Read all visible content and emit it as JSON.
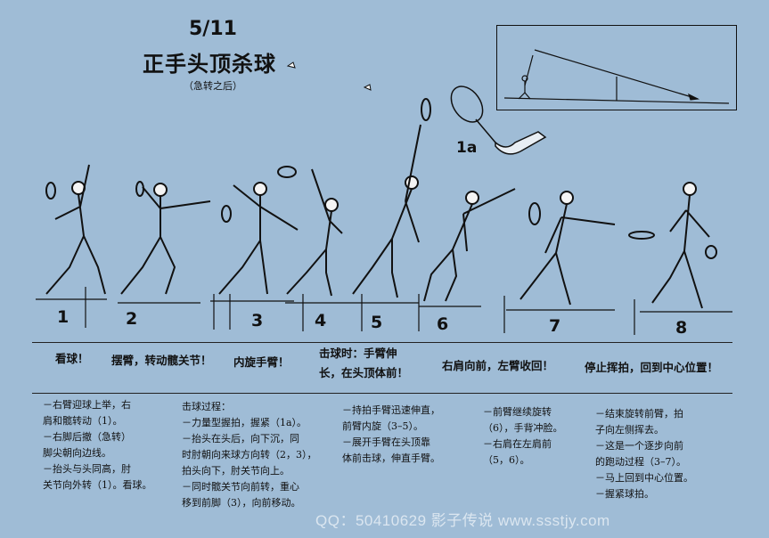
{
  "header": {
    "page_number": "5/11",
    "title": "正手头顶杀球",
    "subtitle": "（急转之后）"
  },
  "figure_label_1a": "1a",
  "frames": [
    {
      "number": "1"
    },
    {
      "number": "2"
    },
    {
      "number": "3"
    },
    {
      "number": "4"
    },
    {
      "number": "5"
    },
    {
      "number": "6"
    },
    {
      "number": "7"
    },
    {
      "number": "8"
    }
  ],
  "phases": [
    {
      "line1": "看球！",
      "line2": ""
    },
    {
      "line1": "摆臂，转动髋关节！",
      "line2": ""
    },
    {
      "line1": "内旋手臂！",
      "line2": ""
    },
    {
      "line1": "击球时：手臂伸",
      "line2": "长，在头顶体前！"
    },
    {
      "line1": "右肩向前，左臂收回！",
      "line2": ""
    },
    {
      "line1": "停止挥拍，回到中心位置！",
      "line2": ""
    }
  ],
  "notes": [
    {
      "lines": [
        "－右臂迎球上举，右",
        "肩和髋转动（1）。",
        "－右脚后撤（急转）",
        "脚尖朝向边线。",
        "－抬头与头同高，肘",
        "关节向外转（1）。看球。"
      ]
    },
    {
      "lines": [
        "击球过程：",
        "－力量型握拍，握紧（1a）。",
        "－抬头在头后，向下沉，同",
        "时肘朝向来球方向转（2，3），",
        "拍头向下，肘关节向上。",
        "－同时髋关节向前转，重心",
        "移到前脚（3），向前移动。"
      ]
    },
    {
      "lines": [
        "－持拍手臂迅速伸直，",
        "前臂内旋（3–5）。",
        "－展开手臂在头顶靠",
        "体前击球，伸直手臂。"
      ]
    },
    {
      "lines": [
        "－前臂继续旋转",
        "（6），手背冲脸。",
        "－右肩在左肩前",
        "（5，6）。"
      ]
    },
    {
      "lines": [
        "－结束旋转前臂，拍",
        "子向左侧挥去。",
        "－这是一个逐步向前",
        "的跑动过程（3–7）。",
        "－马上回到中心位置。",
        "－握紧球拍。"
      ]
    }
  ],
  "watermark": "QQ：50410629   影子传说   www.ssstjy.com",
  "colors": {
    "background": "#9fbcd6",
    "ink": "#111111"
  }
}
